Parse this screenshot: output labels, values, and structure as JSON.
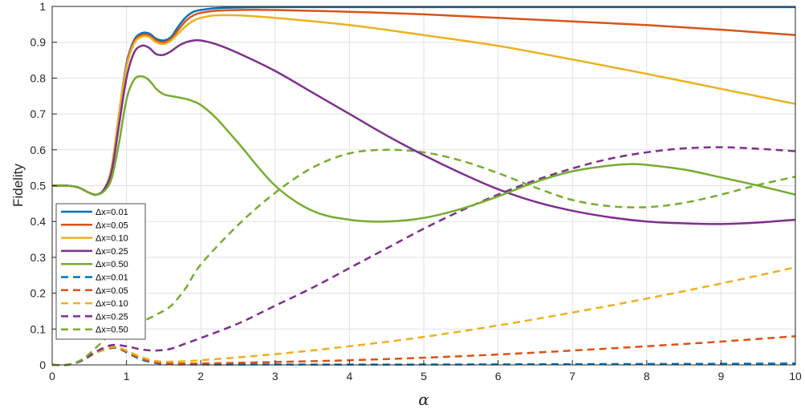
{
  "chart_data": {
    "type": "line",
    "xlabel": "α",
    "ylabel": "Fidelity",
    "xlim": [
      0,
      10
    ],
    "ylim": [
      0,
      1
    ],
    "xticks": [
      "0",
      "1",
      "2",
      "3",
      "4",
      "5",
      "6",
      "7",
      "8",
      "9",
      "10"
    ],
    "yticks": [
      "0",
      "0.1",
      "0.2",
      "0.3",
      "0.4",
      "0.5",
      "0.6",
      "0.7",
      "0.8",
      "0.9",
      "1"
    ],
    "grid": true,
    "legend_position": "bottom-left",
    "series": [
      {
        "name": "Δx=0.01",
        "style": "solid",
        "color": "#0072BD",
        "points": [
          [
            0,
            0.5
          ],
          [
            0.2,
            0.5
          ],
          [
            0.35,
            0.495
          ],
          [
            0.5,
            0.48
          ],
          [
            0.6,
            0.475
          ],
          [
            0.7,
            0.49
          ],
          [
            0.8,
            0.55
          ],
          [
            0.9,
            0.7
          ],
          [
            1.0,
            0.84
          ],
          [
            1.1,
            0.905
          ],
          [
            1.2,
            0.925
          ],
          [
            1.3,
            0.925
          ],
          [
            1.4,
            0.91
          ],
          [
            1.5,
            0.905
          ],
          [
            1.6,
            0.915
          ],
          [
            1.7,
            0.945
          ],
          [
            1.8,
            0.97
          ],
          [
            1.9,
            0.985
          ],
          [
            2.0,
            0.99
          ],
          [
            2.2,
            0.995
          ],
          [
            2.5,
            0.997
          ],
          [
            3,
            0.998
          ],
          [
            5,
            0.998
          ],
          [
            7,
            0.998
          ],
          [
            10,
            0.998
          ]
        ]
      },
      {
        "name": "Δx=0.05",
        "style": "solid",
        "color": "#D95319",
        "points": [
          [
            0,
            0.5
          ],
          [
            0.2,
            0.5
          ],
          [
            0.35,
            0.495
          ],
          [
            0.5,
            0.48
          ],
          [
            0.6,
            0.475
          ],
          [
            0.7,
            0.49
          ],
          [
            0.8,
            0.55
          ],
          [
            0.9,
            0.7
          ],
          [
            1.0,
            0.835
          ],
          [
            1.1,
            0.9
          ],
          [
            1.2,
            0.92
          ],
          [
            1.3,
            0.92
          ],
          [
            1.4,
            0.905
          ],
          [
            1.5,
            0.9
          ],
          [
            1.6,
            0.91
          ],
          [
            1.7,
            0.935
          ],
          [
            1.8,
            0.96
          ],
          [
            1.9,
            0.975
          ],
          [
            2.0,
            0.982
          ],
          [
            2.2,
            0.988
          ],
          [
            2.5,
            0.99
          ],
          [
            3,
            0.99
          ],
          [
            4,
            0.985
          ],
          [
            5,
            0.978
          ],
          [
            6,
            0.968
          ],
          [
            7,
            0.958
          ],
          [
            8,
            0.948
          ],
          [
            9,
            0.935
          ],
          [
            10,
            0.92
          ]
        ]
      },
      {
        "name": "Δx=0.10",
        "style": "solid",
        "color": "#EDB120",
        "points": [
          [
            0,
            0.5
          ],
          [
            0.2,
            0.5
          ],
          [
            0.35,
            0.495
          ],
          [
            0.5,
            0.48
          ],
          [
            0.6,
            0.475
          ],
          [
            0.7,
            0.49
          ],
          [
            0.8,
            0.55
          ],
          [
            0.9,
            0.7
          ],
          [
            1.0,
            0.83
          ],
          [
            1.1,
            0.895
          ],
          [
            1.2,
            0.915
          ],
          [
            1.3,
            0.915
          ],
          [
            1.4,
            0.9
          ],
          [
            1.5,
            0.895
          ],
          [
            1.6,
            0.905
          ],
          [
            1.7,
            0.925
          ],
          [
            1.8,
            0.945
          ],
          [
            1.9,
            0.96
          ],
          [
            2.0,
            0.968
          ],
          [
            2.2,
            0.975
          ],
          [
            2.5,
            0.975
          ],
          [
            3,
            0.968
          ],
          [
            4,
            0.948
          ],
          [
            5,
            0.92
          ],
          [
            6,
            0.89
          ],
          [
            7,
            0.852
          ],
          [
            8,
            0.812
          ],
          [
            9,
            0.77
          ],
          [
            10,
            0.728
          ]
        ]
      },
      {
        "name": "Δx=0.25",
        "style": "solid",
        "color": "#7E2F8E",
        "points": [
          [
            0,
            0.5
          ],
          [
            0.2,
            0.5
          ],
          [
            0.35,
            0.495
          ],
          [
            0.5,
            0.48
          ],
          [
            0.6,
            0.475
          ],
          [
            0.7,
            0.49
          ],
          [
            0.8,
            0.54
          ],
          [
            0.9,
            0.67
          ],
          [
            1.0,
            0.8
          ],
          [
            1.1,
            0.87
          ],
          [
            1.2,
            0.89
          ],
          [
            1.3,
            0.885
          ],
          [
            1.4,
            0.867
          ],
          [
            1.5,
            0.865
          ],
          [
            1.6,
            0.875
          ],
          [
            1.7,
            0.89
          ],
          [
            1.8,
            0.9
          ],
          [
            1.9,
            0.905
          ],
          [
            2.0,
            0.905
          ],
          [
            2.2,
            0.895
          ],
          [
            2.5,
            0.87
          ],
          [
            3,
            0.82
          ],
          [
            3.5,
            0.76
          ],
          [
            4,
            0.7
          ],
          [
            4.5,
            0.64
          ],
          [
            5,
            0.585
          ],
          [
            5.5,
            0.535
          ],
          [
            6,
            0.49
          ],
          [
            6.5,
            0.455
          ],
          [
            7,
            0.43
          ],
          [
            7.5,
            0.412
          ],
          [
            8,
            0.4
          ],
          [
            8.5,
            0.395
          ],
          [
            9,
            0.393
          ],
          [
            9.5,
            0.397
          ],
          [
            10,
            0.405
          ]
        ]
      },
      {
        "name": "Δx=0.50",
        "style": "solid",
        "color": "#77AC30",
        "points": [
          [
            0,
            0.5
          ],
          [
            0.2,
            0.5
          ],
          [
            0.35,
            0.495
          ],
          [
            0.5,
            0.48
          ],
          [
            0.6,
            0.475
          ],
          [
            0.7,
            0.485
          ],
          [
            0.8,
            0.52
          ],
          [
            0.9,
            0.62
          ],
          [
            1.0,
            0.74
          ],
          [
            1.1,
            0.795
          ],
          [
            1.2,
            0.805
          ],
          [
            1.3,
            0.795
          ],
          [
            1.4,
            0.77
          ],
          [
            1.5,
            0.755
          ],
          [
            1.6,
            0.75
          ],
          [
            1.8,
            0.742
          ],
          [
            1.9,
            0.735
          ],
          [
            2.0,
            0.725
          ],
          [
            2.2,
            0.69
          ],
          [
            2.5,
            0.62
          ],
          [
            3,
            0.5
          ],
          [
            3.5,
            0.43
          ],
          [
            4,
            0.405
          ],
          [
            4.5,
            0.4
          ],
          [
            5,
            0.41
          ],
          [
            5.5,
            0.435
          ],
          [
            6,
            0.47
          ],
          [
            6.5,
            0.51
          ],
          [
            7,
            0.54
          ],
          [
            7.5,
            0.556
          ],
          [
            7.8,
            0.56
          ],
          [
            8,
            0.558
          ],
          [
            8.5,
            0.545
          ],
          [
            9,
            0.523
          ],
          [
            9.5,
            0.5
          ],
          [
            10,
            0.475
          ]
        ]
      },
      {
        "name": "Δx=0.01",
        "style": "dashed",
        "color": "#0072BD",
        "points": [
          [
            0,
            0
          ],
          [
            0.2,
            0
          ],
          [
            0.4,
            0.012
          ],
          [
            0.6,
            0.035
          ],
          [
            0.8,
            0.047
          ],
          [
            0.9,
            0.045
          ],
          [
            1.0,
            0.035
          ],
          [
            1.2,
            0.015
          ],
          [
            1.4,
            0.005
          ],
          [
            1.6,
            0.002
          ],
          [
            2,
            0.001
          ],
          [
            3,
            0.001
          ],
          [
            5,
            0.001
          ],
          [
            7,
            0.002
          ],
          [
            9,
            0.003
          ],
          [
            10,
            0.004
          ]
        ]
      },
      {
        "name": "Δx=0.05",
        "style": "dashed",
        "color": "#D95319",
        "points": [
          [
            0,
            0
          ],
          [
            0.2,
            0
          ],
          [
            0.4,
            0.012
          ],
          [
            0.6,
            0.035
          ],
          [
            0.8,
            0.048
          ],
          [
            0.9,
            0.046
          ],
          [
            1.0,
            0.037
          ],
          [
            1.2,
            0.018
          ],
          [
            1.4,
            0.007
          ],
          [
            1.6,
            0.004
          ],
          [
            2,
            0.004
          ],
          [
            3,
            0.008
          ],
          [
            4,
            0.013
          ],
          [
            5,
            0.02
          ],
          [
            6,
            0.029
          ],
          [
            7,
            0.04
          ],
          [
            8,
            0.052
          ],
          [
            9,
            0.065
          ],
          [
            10,
            0.08
          ]
        ]
      },
      {
        "name": "Δx=0.10",
        "style": "dashed",
        "color": "#EDB120",
        "points": [
          [
            0,
            0
          ],
          [
            0.2,
            0
          ],
          [
            0.4,
            0.012
          ],
          [
            0.6,
            0.035
          ],
          [
            0.8,
            0.05
          ],
          [
            0.9,
            0.048
          ],
          [
            1.0,
            0.04
          ],
          [
            1.2,
            0.022
          ],
          [
            1.4,
            0.011
          ],
          [
            1.6,
            0.009
          ],
          [
            2,
            0.013
          ],
          [
            3,
            0.03
          ],
          [
            4,
            0.052
          ],
          [
            5,
            0.078
          ],
          [
            6,
            0.11
          ],
          [
            7,
            0.146
          ],
          [
            8,
            0.185
          ],
          [
            9,
            0.227
          ],
          [
            10,
            0.272
          ]
        ]
      },
      {
        "name": "Δx=0.25",
        "style": "dashed",
        "color": "#7E2F8E",
        "points": [
          [
            0,
            0
          ],
          [
            0.2,
            0
          ],
          [
            0.4,
            0.012
          ],
          [
            0.6,
            0.038
          ],
          [
            0.8,
            0.055
          ],
          [
            1.0,
            0.052
          ],
          [
            1.2,
            0.043
          ],
          [
            1.4,
            0.04
          ],
          [
            1.6,
            0.045
          ],
          [
            1.8,
            0.06
          ],
          [
            2,
            0.075
          ],
          [
            2.5,
            0.115
          ],
          [
            3,
            0.165
          ],
          [
            3.5,
            0.215
          ],
          [
            4,
            0.27
          ],
          [
            4.5,
            0.325
          ],
          [
            5,
            0.38
          ],
          [
            5.5,
            0.43
          ],
          [
            6,
            0.475
          ],
          [
            6.5,
            0.515
          ],
          [
            7,
            0.548
          ],
          [
            7.5,
            0.575
          ],
          [
            8,
            0.593
          ],
          [
            8.5,
            0.604
          ],
          [
            9,
            0.607
          ],
          [
            9.5,
            0.603
          ],
          [
            10,
            0.596
          ]
        ]
      },
      {
        "name": "Δx=0.50",
        "style": "dashed",
        "color": "#77AC30",
        "points": [
          [
            0,
            0
          ],
          [
            0.2,
            0
          ],
          [
            0.4,
            0.015
          ],
          [
            0.6,
            0.05
          ],
          [
            0.8,
            0.09
          ],
          [
            1.0,
            0.105
          ],
          [
            1.2,
            0.12
          ],
          [
            1.4,
            0.14
          ],
          [
            1.6,
            0.165
          ],
          [
            1.8,
            0.215
          ],
          [
            2,
            0.28
          ],
          [
            2.5,
            0.39
          ],
          [
            3,
            0.48
          ],
          [
            3.5,
            0.55
          ],
          [
            4,
            0.59
          ],
          [
            4.5,
            0.6
          ],
          [
            5,
            0.593
          ],
          [
            5.5,
            0.57
          ],
          [
            6,
            0.535
          ],
          [
            6.5,
            0.495
          ],
          [
            7,
            0.46
          ],
          [
            7.5,
            0.443
          ],
          [
            8,
            0.44
          ],
          [
            8.5,
            0.452
          ],
          [
            9,
            0.475
          ],
          [
            9.5,
            0.502
          ],
          [
            10,
            0.525
          ]
        ]
      }
    ]
  }
}
